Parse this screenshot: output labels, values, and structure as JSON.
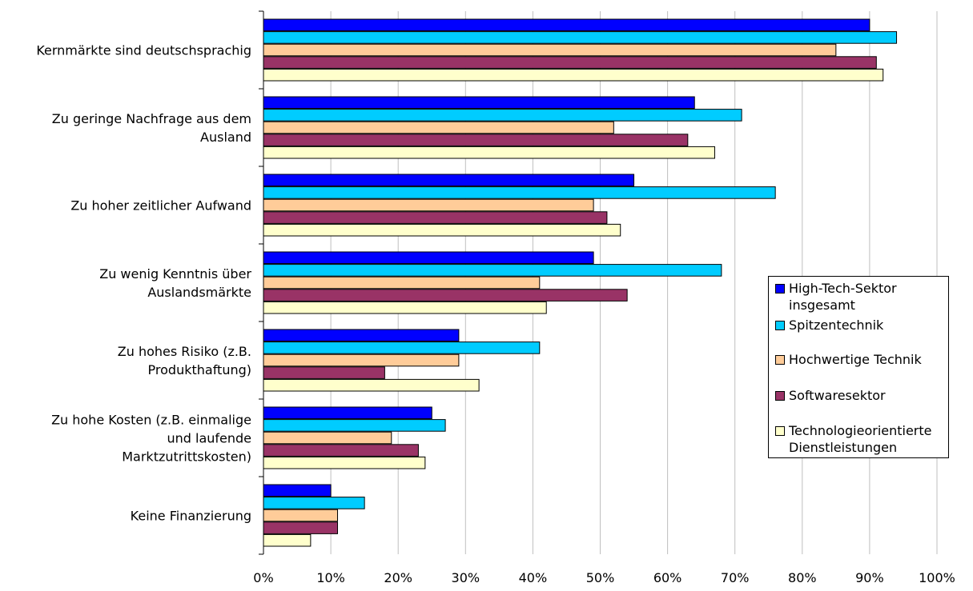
{
  "chart_data": {
    "type": "bar",
    "orientation": "horizontal",
    "categories": [
      "Kernmärkte sind deutschsprachig",
      "Zu geringe Nachfrage aus dem Ausland",
      "Zu hoher zeitlicher Aufwand",
      "Zu wenig Kenntnis über Auslandsmärkte",
      "Zu hohes Risiko (z.B. Produkthaftung)",
      "Zu hohe Kosten (z.B. einmalige und laufende Marktzutrittskosten)",
      "Keine Finanzierung"
    ],
    "category_label_lines": [
      [
        "Kernmärkte sind deutschsprachig"
      ],
      [
        "Zu geringe Nachfrage aus dem",
        "Ausland"
      ],
      [
        "Zu hoher zeitlicher Aufwand"
      ],
      [
        "Zu wenig Kenntnis über",
        "Auslandsmärkte"
      ],
      [
        "Zu hohes Risiko (z.B.",
        "Produkthaftung)"
      ],
      [
        "Zu hohe Kosten (z.B. einmalige",
        "und laufende",
        "Marktzutrittskosten)"
      ],
      [
        "Keine Finanzierung"
      ]
    ],
    "series": [
      {
        "name": "High-Tech-Sektor insgesamt",
        "color": "#0000ff",
        "values": [
          90,
          64,
          55,
          49,
          29,
          25,
          10
        ]
      },
      {
        "name": "Spitzentechnik",
        "color": "#00ccff",
        "values": [
          94,
          71,
          76,
          68,
          41,
          27,
          15
        ]
      },
      {
        "name": "Hochwertige Technik",
        "color": "#ffcc99",
        "values": [
          85,
          52,
          49,
          41,
          29,
          19,
          11
        ]
      },
      {
        "name": "Softwaresektor",
        "color": "#993366",
        "values": [
          91,
          63,
          51,
          54,
          18,
          23,
          11
        ]
      },
      {
        "name": "Technologieorientierte Dienstleistungen",
        "color": "#ffffcc",
        "values": [
          92,
          67,
          53,
          42,
          32,
          24,
          7
        ]
      }
    ],
    "xlim": [
      0,
      100
    ],
    "x_ticks": [
      "0%",
      "10%",
      "20%",
      "30%",
      "40%",
      "50%",
      "60%",
      "70%",
      "80%",
      "90%",
      "100%"
    ],
    "grid": true,
    "legend_position": "right",
    "title": "",
    "xlabel": "",
    "ylabel": ""
  }
}
